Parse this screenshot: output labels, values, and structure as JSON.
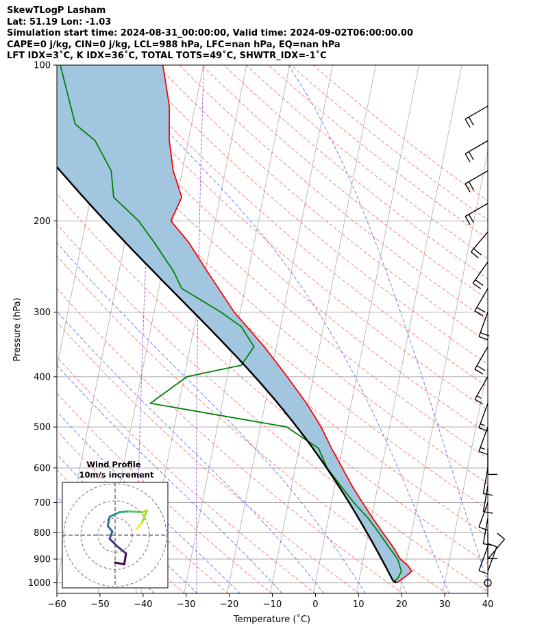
{
  "header": {
    "line1": "SkewTLogP Lasham",
    "line2": "Lat: 51.19   Lon: -1.03",
    "line3": "Simulation start time: 2024-08-31_00:00:00, Valid time: 2024-09-02T06:00:00.00",
    "line4": "CAPE=0 j/kg, CIN=0 j/kg, LCL=988 hPa, LFC=nan hPa, EQ=nan hPa",
    "line5": "LFT IDX=3˚C, K IDX=36˚C, TOTAL TOTS=49˚C, SHWTR_IDX=-1˚C"
  },
  "colors": {
    "temperature": "#ff0000",
    "dewpoint": "#008000",
    "parcel": "#000000",
    "cape_fill": "#a3c6e0",
    "dry_adiabats": "#ff6666",
    "moist_adiabats": "#5566ff",
    "mixing_ratio": "#9955cc",
    "isotherms": "#aaaaaa",
    "isobars": "#aaaaaa"
  },
  "chart_data": {
    "type": "skew-t log-p",
    "xlabel": "Temperature (˚C)",
    "ylabel": "Pressure (hPa)",
    "xlim": [
      -60,
      40
    ],
    "ylim": [
      1050,
      100
    ],
    "x_ticks": [
      -60,
      -50,
      -40,
      -30,
      -20,
      -10,
      0,
      10,
      20,
      30,
      40
    ],
    "y_ticks": [
      1000,
      900,
      800,
      700,
      600,
      500,
      400,
      300,
      200,
      100
    ],
    "grid": true,
    "skew_deg_per_decade": 24,
    "temperature": [
      {
        "p": 1000,
        "t": 18.8
      },
      {
        "p": 975,
        "t": 20.5
      },
      {
        "p": 950,
        "t": 21.8
      },
      {
        "p": 925,
        "t": 20.6
      },
      {
        "p": 900,
        "t": 18.6
      },
      {
        "p": 850,
        "t": 16.2
      },
      {
        "p": 800,
        "t": 13.3
      },
      {
        "p": 750,
        "t": 10.3
      },
      {
        "p": 700,
        "t": 7.2
      },
      {
        "p": 650,
        "t": 4.0
      },
      {
        "p": 600,
        "t": 0.9
      },
      {
        "p": 550,
        "t": -2.5
      },
      {
        "p": 500,
        "t": -5.9
      },
      {
        "p": 450,
        "t": -10.4
      },
      {
        "p": 400,
        "t": -16.1
      },
      {
        "p": 350,
        "t": -22.8
      },
      {
        "p": 300,
        "t": -31.4
      },
      {
        "p": 250,
        "t": -39.6
      },
      {
        "p": 220,
        "t": -45.2
      },
      {
        "p": 200,
        "t": -50.3
      },
      {
        "p": 180,
        "t": -48.9
      },
      {
        "p": 160,
        "t": -52.1
      },
      {
        "p": 140,
        "t": -54.4
      },
      {
        "p": 120,
        "t": -56.0
      },
      {
        "p": 100,
        "t": -59.4
      }
    ],
    "dewpoint": [
      {
        "p": 1000,
        "t": 18.0
      },
      {
        "p": 975,
        "t": 19.0
      },
      {
        "p": 950,
        "t": 19.4
      },
      {
        "p": 900,
        "t": 18.0
      },
      {
        "p": 850,
        "t": 15.2
      },
      {
        "p": 800,
        "t": 12.4
      },
      {
        "p": 750,
        "t": 9.2
      },
      {
        "p": 700,
        "t": 5.2
      },
      {
        "p": 650,
        "t": 1.4
      },
      {
        "p": 600,
        "t": -2.6
      },
      {
        "p": 550,
        "t": -5.5
      },
      {
        "p": 500,
        "t": -13.9
      },
      {
        "p": 450,
        "t": -46.6
      },
      {
        "p": 400,
        "t": -39.4
      },
      {
        "p": 380,
        "t": -27.3
      },
      {
        "p": 350,
        "t": -25.2
      },
      {
        "p": 320,
        "t": -29.1
      },
      {
        "p": 300,
        "t": -34.5
      },
      {
        "p": 270,
        "t": -44.7
      },
      {
        "p": 250,
        "t": -47.4
      },
      {
        "p": 220,
        "t": -53.2
      },
      {
        "p": 200,
        "t": -57.8
      },
      {
        "p": 180,
        "t": -64.7
      },
      {
        "p": 160,
        "t": -66.5
      },
      {
        "p": 140,
        "t": -71.6
      },
      {
        "p": 130,
        "t": -77.0
      },
      {
        "p": 115,
        "t": -79.9
      },
      {
        "p": 100,
        "t": -83.2
      }
    ],
    "parcel_surface_t": 18.8,
    "parcel_surface_td": 18.0,
    "parcel_surface_p": 1000,
    "wind_barbs": [
      {
        "p": 1000,
        "speed_kt": 0,
        "dir_deg": 0
      },
      {
        "p": 950,
        "speed_kt": 10,
        "dir_deg": 20
      },
      {
        "p": 900,
        "speed_kt": 10,
        "dir_deg": 40
      },
      {
        "p": 850,
        "speed_kt": 10,
        "dir_deg": 200
      },
      {
        "p": 800,
        "speed_kt": 10,
        "dir_deg": 180
      },
      {
        "p": 750,
        "speed_kt": 10,
        "dir_deg": 190
      },
      {
        "p": 700,
        "speed_kt": 10,
        "dir_deg": 200
      },
      {
        "p": 650,
        "speed_kt": 10,
        "dir_deg": 190
      },
      {
        "p": 600,
        "speed_kt": 10,
        "dir_deg": 190
      },
      {
        "p": 550,
        "speed_kt": 10,
        "dir_deg": 180
      },
      {
        "p": 500,
        "speed_kt": 15,
        "dir_deg": 200
      },
      {
        "p": 450,
        "speed_kt": 15,
        "dir_deg": 200
      },
      {
        "p": 400,
        "speed_kt": 15,
        "dir_deg": 210
      },
      {
        "p": 350,
        "speed_kt": 20,
        "dir_deg": 210
      },
      {
        "p": 300,
        "speed_kt": 20,
        "dir_deg": 200
      },
      {
        "p": 270,
        "speed_kt": 20,
        "dir_deg": 210
      },
      {
        "p": 240,
        "speed_kt": 20,
        "dir_deg": 215
      },
      {
        "p": 210,
        "speed_kt": 20,
        "dir_deg": 220
      },
      {
        "p": 185,
        "speed_kt": 20,
        "dir_deg": 240
      },
      {
        "p": 160,
        "speed_kt": 20,
        "dir_deg": 240
      },
      {
        "p": 140,
        "speed_kt": 20,
        "dir_deg": 240
      },
      {
        "p": 120,
        "speed_kt": 20,
        "dir_deg": 240
      }
    ],
    "inset": {
      "title_line1": "Wind Profile",
      "title_line2": "10m/s increment",
      "rings": 3,
      "hodograph": [
        {
          "u": 0.0,
          "v": -3.0
        },
        {
          "u": 1.0,
          "v": -3.2
        },
        {
          "u": 1.2,
          "v": -2.0
        },
        {
          "u": 0.2,
          "v": -1.2
        },
        {
          "u": -0.6,
          "v": -0.4
        },
        {
          "u": -0.3,
          "v": 0.4
        },
        {
          "u": -0.8,
          "v": 1.0
        },
        {
          "u": -0.6,
          "v": 2.0
        },
        {
          "u": 0.2,
          "v": 2.4
        },
        {
          "u": 0.5,
          "v": 2.5
        },
        {
          "u": 1.5,
          "v": 2.6
        },
        {
          "u": 3.0,
          "v": 2.5
        },
        {
          "u": 3.5,
          "v": 2.7
        },
        {
          "u": 2.9,
          "v": 1.3
        },
        {
          "u": 2.4,
          "v": 0.7
        }
      ]
    }
  }
}
